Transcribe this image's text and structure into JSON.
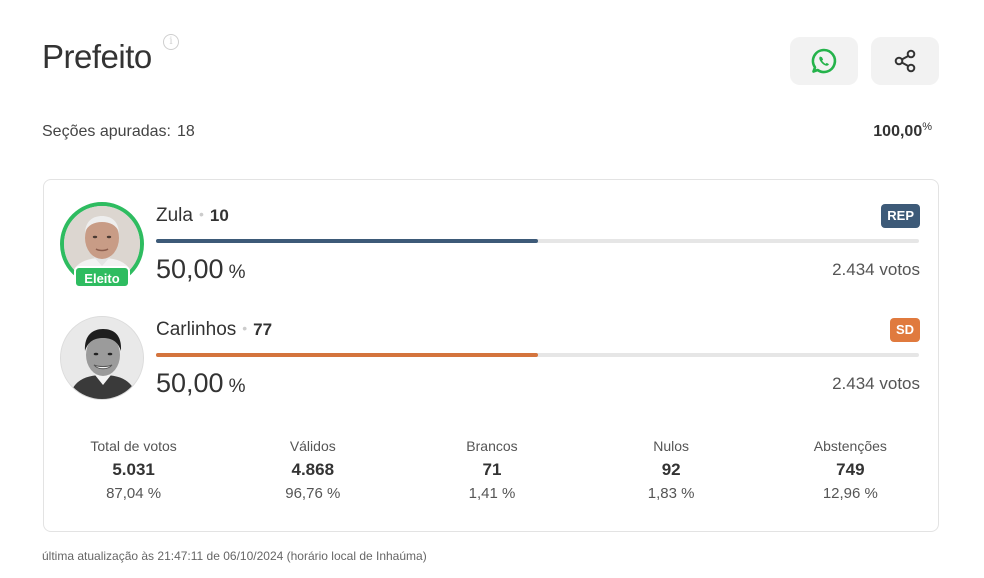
{
  "header": {
    "title": "Prefeito",
    "info_icon": "info-icon",
    "whatsapp_icon": "whatsapp-icon",
    "share_icon": "share-icon"
  },
  "summary": {
    "secoes_label": "Seções apuradas:",
    "secoes_count": "18",
    "percent": "100,00",
    "percent_sign": "%"
  },
  "candidates": [
    {
      "name": "Zula",
      "number": "10",
      "party": "REP",
      "party_color": "#3d5a78",
      "bar_color": "#3d5a78",
      "share_fraction": 0.5,
      "percent": "50,00",
      "percent_unit": "%",
      "votes": "2.434 votos",
      "elected": true,
      "elected_label": "Eleito"
    },
    {
      "name": "Carlinhos",
      "number": "77",
      "party": "SD",
      "party_color": "#e07a3e",
      "bar_color": "#d4743d",
      "share_fraction": 0.5,
      "percent": "50,00",
      "percent_unit": "%",
      "votes": "2.434 votos",
      "elected": false
    }
  ],
  "stats": [
    {
      "label": "Total de votos",
      "value": "5.031",
      "percent": "87,04 %"
    },
    {
      "label": "Válidos",
      "value": "4.868",
      "percent": "96,76 %"
    },
    {
      "label": "Brancos",
      "value": "71",
      "percent": "1,41 %"
    },
    {
      "label": "Nulos",
      "value": "92",
      "percent": "1,83 %"
    },
    {
      "label": "Abstenções",
      "value": "749",
      "percent": "12,96 %"
    }
  ],
  "footer": {
    "text": "última atualização às 21:47:11 de 06/10/2024 (horário local de Inhaúma)"
  },
  "colors": {
    "elected_green": "#2ebc60",
    "whatsapp_green": "#25b34b"
  }
}
